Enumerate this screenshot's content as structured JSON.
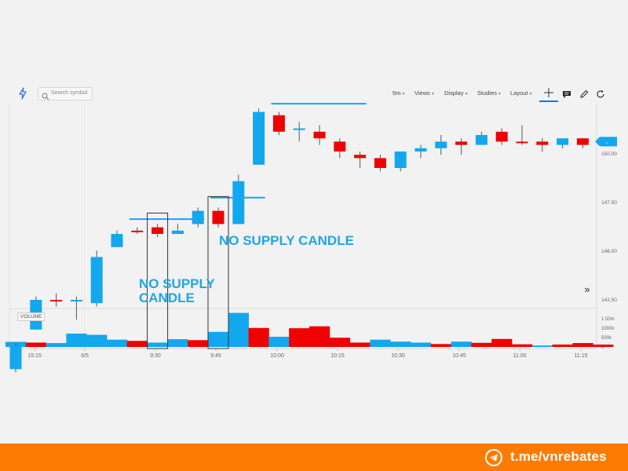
{
  "toolbar": {
    "search_placeholder": "Search symbol",
    "interval": "5m",
    "views": "Views",
    "display": "Display",
    "studies": "Studies",
    "layout": "Layout"
  },
  "annotations": {
    "label_1": "NO SUPPLY\nCANDLE",
    "label_2": "NO SUPPLY CANDLE"
  },
  "volume_pane_label": "VOLUME",
  "footer": {
    "link_text": "t.me/vnrebates"
  },
  "colors": {
    "up": "#13a7ee",
    "down": "#f00000",
    "footer": "#ff7a00",
    "annotation": "#1ea7e6"
  },
  "chart_data": {
    "type": "candlestick",
    "x_tick_labels": [
      "15:15",
      "6/5",
      "9:30",
      "9:45",
      "10:00",
      "10:15",
      "10:30",
      "10:45",
      "11:00",
      "11:15"
    ],
    "y_tick_labels": [
      "150.00",
      "147.50",
      "146.00",
      "142.50"
    ],
    "last_price_label": "...",
    "volume_tick_labels": [
      "1.50m",
      "1000k",
      "500k",
      "0"
    ],
    "candles": [
      {
        "o": 143.1,
        "h": 143.2,
        "l": 142.3,
        "c": 142.4,
        "dir": "up"
      },
      {
        "o": 143.6,
        "h": 144.6,
        "l": 143.6,
        "c": 144.5,
        "dir": "up"
      },
      {
        "o": 144.5,
        "h": 144.7,
        "l": 144.3,
        "c": 144.5,
        "dir": "down"
      },
      {
        "o": 144.5,
        "h": 144.6,
        "l": 143.9,
        "c": 144.5,
        "dir": "up"
      },
      {
        "o": 144.4,
        "h": 146.0,
        "l": 144.3,
        "c": 145.8,
        "dir": "up"
      },
      {
        "o": 146.1,
        "h": 146.6,
        "l": 146.1,
        "c": 146.5,
        "dir": "up"
      },
      {
        "o": 146.6,
        "h": 146.7,
        "l": 146.5,
        "c": 146.6,
        "dir": "down"
      },
      {
        "o": 146.7,
        "h": 146.8,
        "l": 146.4,
        "c": 146.5,
        "dir": "down"
      },
      {
        "o": 146.5,
        "h": 146.8,
        "l": 146.5,
        "c": 146.6,
        "dir": "up"
      },
      {
        "o": 146.8,
        "h": 147.3,
        "l": 146.7,
        "c": 147.2,
        "dir": "up"
      },
      {
        "o": 147.2,
        "h": 147.3,
        "l": 146.7,
        "c": 146.8,
        "dir": "down"
      },
      {
        "o": 146.8,
        "h": 148.3,
        "l": 146.8,
        "c": 148.1,
        "dir": "up"
      },
      {
        "o": 148.6,
        "h": 150.3,
        "l": 148.6,
        "c": 150.2,
        "dir": "up"
      },
      {
        "o": 150.1,
        "h": 150.2,
        "l": 149.5,
        "c": 149.6,
        "dir": "down"
      },
      {
        "o": 149.7,
        "h": 149.9,
        "l": 149.3,
        "c": 149.7,
        "dir": "up"
      },
      {
        "o": 149.6,
        "h": 149.8,
        "l": 149.2,
        "c": 149.4,
        "dir": "down"
      },
      {
        "o": 149.3,
        "h": 149.4,
        "l": 148.8,
        "c": 149.0,
        "dir": "down"
      },
      {
        "o": 148.9,
        "h": 149.0,
        "l": 148.5,
        "c": 148.8,
        "dir": "down"
      },
      {
        "o": 148.8,
        "h": 148.9,
        "l": 148.4,
        "c": 148.5,
        "dir": "down"
      },
      {
        "o": 148.5,
        "h": 149.0,
        "l": 148.4,
        "c": 149.0,
        "dir": "up"
      },
      {
        "o": 149.0,
        "h": 149.2,
        "l": 148.8,
        "c": 149.1,
        "dir": "up"
      },
      {
        "o": 149.1,
        "h": 149.5,
        "l": 148.9,
        "c": 149.3,
        "dir": "up"
      },
      {
        "o": 149.3,
        "h": 149.4,
        "l": 148.9,
        "c": 149.2,
        "dir": "down"
      },
      {
        "o": 149.2,
        "h": 149.6,
        "l": 149.2,
        "c": 149.5,
        "dir": "up"
      },
      {
        "o": 149.6,
        "h": 149.7,
        "l": 149.2,
        "c": 149.3,
        "dir": "down"
      },
      {
        "o": 149.3,
        "h": 149.8,
        "l": 149.2,
        "c": 149.3,
        "dir": "down"
      },
      {
        "o": 149.3,
        "h": 149.4,
        "l": 149.0,
        "c": 149.2,
        "dir": "down"
      },
      {
        "o": 149.2,
        "h": 149.4,
        "l": 149.1,
        "c": 149.4,
        "dir": "up"
      },
      {
        "o": 149.4,
        "h": 149.4,
        "l": 149.1,
        "c": 149.2,
        "dir": "down"
      },
      {
        "o": 149.3,
        "h": 149.4,
        "l": 149.2,
        "c": 149.3,
        "dir": "down"
      }
    ],
    "volume": [
      {
        "v": 0.21,
        "dir": "up"
      },
      {
        "v": 0.18,
        "dir": "down"
      },
      {
        "v": 0.16,
        "dir": "up"
      },
      {
        "v": 0.55,
        "dir": "up"
      },
      {
        "v": 0.5,
        "dir": "up"
      },
      {
        "v": 0.3,
        "dir": "up"
      },
      {
        "v": 0.25,
        "dir": "down"
      },
      {
        "v": 0.18,
        "dir": "up"
      },
      {
        "v": 0.32,
        "dir": "up"
      },
      {
        "v": 0.28,
        "dir": "down"
      },
      {
        "v": 0.62,
        "dir": "up"
      },
      {
        "v": 1.4,
        "dir": "up"
      },
      {
        "v": 0.78,
        "dir": "down"
      },
      {
        "v": 0.42,
        "dir": "up"
      },
      {
        "v": 0.77,
        "dir": "down"
      },
      {
        "v": 0.85,
        "dir": "down"
      },
      {
        "v": 0.38,
        "dir": "down"
      },
      {
        "v": 0.18,
        "dir": "down"
      },
      {
        "v": 0.3,
        "dir": "up"
      },
      {
        "v": 0.22,
        "dir": "up"
      },
      {
        "v": 0.18,
        "dir": "up"
      },
      {
        "v": 0.12,
        "dir": "down"
      },
      {
        "v": 0.22,
        "dir": "up"
      },
      {
        "v": 0.17,
        "dir": "down"
      },
      {
        "v": 0.33,
        "dir": "down"
      },
      {
        "v": 0.11,
        "dir": "down"
      },
      {
        "v": 0.06,
        "dir": "up"
      },
      {
        "v": 0.1,
        "dir": "down"
      },
      {
        "v": 0.16,
        "dir": "down"
      },
      {
        "v": 0.1,
        "dir": "down"
      }
    ],
    "level_lines": [
      {
        "from_candle": 6,
        "to_candle": 9,
        "price": 146.95
      },
      {
        "from_candle": 10,
        "to_candle": 12,
        "price": 147.6
      },
      {
        "from_candle": 13,
        "to_candle": 17,
        "price": 150.45
      }
    ],
    "highlight_boxes": [
      {
        "candle": 7,
        "covers_volume": true
      },
      {
        "candle": 10,
        "covers_volume": true
      }
    ]
  }
}
